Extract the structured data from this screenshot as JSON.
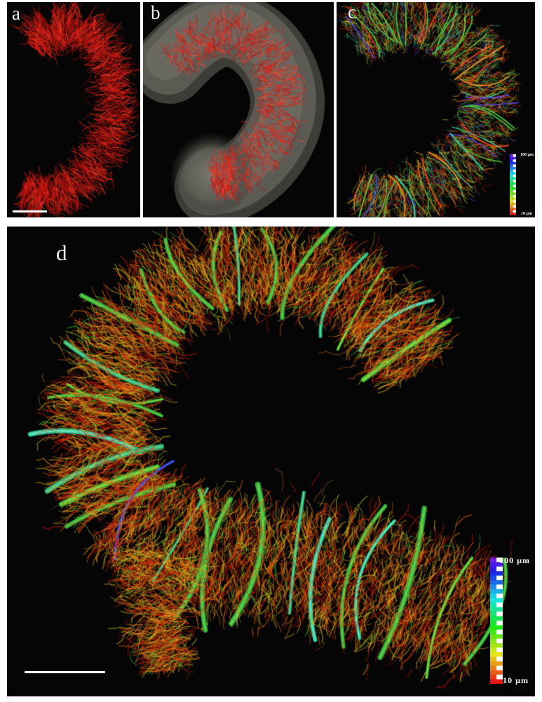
{
  "panels": {
    "a": {
      "label": "a",
      "has_scale_bar": true
    },
    "b": {
      "label": "b"
    },
    "c": {
      "label": "c",
      "colorbar": {
        "top_label": "100 µm",
        "bottom_label": "10 µm"
      }
    },
    "d": {
      "label": "d",
      "has_scale_bar": true,
      "colorbar": {
        "top_label": "100 µm",
        "bottom_label": "10 µm"
      }
    }
  },
  "colors": {
    "figure_background": "#ffffff",
    "panel_background": "#050505",
    "label_text": "#f2f2ee",
    "scale_bar": "#ffffff",
    "vessel_reds": [
      "#e32119",
      "#b81210",
      "#8f0d0c",
      "#ff4a2e"
    ],
    "surface_grays": [
      "#3f3f3a",
      "#5d5d55",
      "#74746a"
    ],
    "fine_vessel_palette": [
      "#cc1d08",
      "#e0641a",
      "#edaa1e",
      "#e8cc28",
      "#b5d22c",
      "#44bb33"
    ],
    "thick_vessel_palette": [
      "#2fa73a",
      "#3dbb36",
      "#2ec49b",
      "#2b36d8",
      "#4a2fd0"
    ],
    "colorbar_hue_range": [
      265,
      0
    ]
  }
}
